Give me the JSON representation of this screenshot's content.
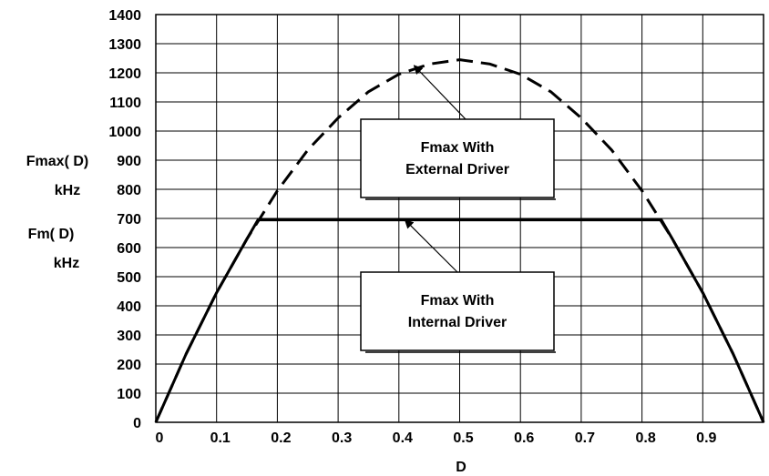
{
  "chart_data": {
    "type": "line",
    "xlabel": "D",
    "ylabel_lines": [
      "Fmax( D)",
      "kHz",
      "Fm( D)",
      "kHz"
    ],
    "xlim": [
      0,
      1
    ],
    "ylim": [
      0,
      1400
    ],
    "x_ticks": [
      0,
      0.1,
      0.2,
      0.3,
      0.4,
      0.5,
      0.6,
      0.7,
      0.8,
      0.9
    ],
    "x_tick_labels": [
      "0",
      "0.1",
      "0.2",
      "0.3",
      "0.4",
      "0.5",
      "0.6",
      "0.7",
      "0.8",
      "0.9"
    ],
    "y_ticks": [
      0,
      100,
      200,
      300,
      400,
      500,
      600,
      700,
      800,
      900,
      1000,
      1100,
      1200,
      1300,
      1400
    ],
    "y_tick_labels": [
      "0",
      "100",
      "200",
      "300",
      "400",
      "500",
      "600",
      "700",
      "800",
      "900",
      "1000",
      "1100",
      "1200",
      "1300",
      "1400"
    ],
    "grid": true,
    "series": [
      {
        "name": "Fmax With External Driver",
        "style": "dashed",
        "x": [
          0,
          0.05,
          0.1,
          0.15,
          0.2,
          0.25,
          0.3,
          0.35,
          0.4,
          0.45,
          0.5,
          0.55,
          0.6,
          0.65,
          0.7,
          0.75,
          0.8,
          0.85,
          0.9,
          0.95,
          1.0
        ],
        "y": [
          0,
          235,
          445,
          630,
          795,
          935,
          1045,
          1135,
          1195,
          1230,
          1245,
          1230,
          1195,
          1135,
          1045,
          935,
          795,
          630,
          445,
          235,
          0
        ]
      },
      {
        "name": "Fmax With Internal Driver",
        "style": "solid",
        "x": [
          0,
          0.05,
          0.1,
          0.15,
          0.168,
          0.5,
          0.832,
          0.85,
          0.9,
          0.95,
          1.0
        ],
        "y": [
          0,
          235,
          445,
          630,
          695,
          695,
          695,
          630,
          445,
          235,
          0
        ]
      }
    ],
    "annotations": [
      {
        "lines": [
          "Fmax With",
          "External Driver"
        ],
        "points_to": {
          "x": 0.425,
          "y": 1225
        }
      },
      {
        "lines": [
          "Fmax With",
          "Internal Driver"
        ],
        "points_to": {
          "x": 0.41,
          "y": 695
        }
      }
    ]
  }
}
